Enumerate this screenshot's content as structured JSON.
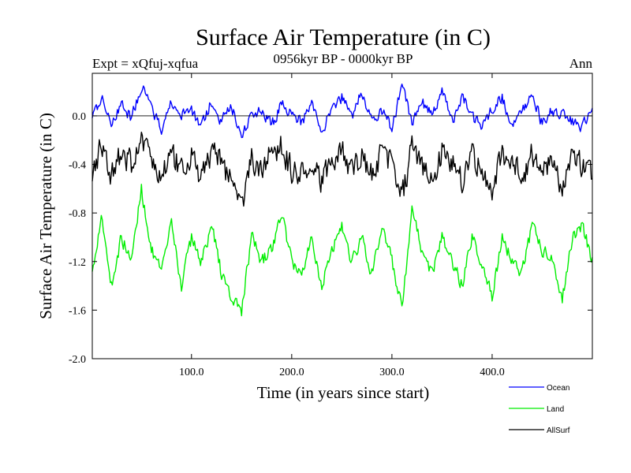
{
  "chart_data": {
    "type": "line",
    "title": "Surface Air Temperature (in C)",
    "subtitle_left": "Expt = xQfuj-xqfua",
    "subtitle_center": "0956kyr BP - 0000kyr BP",
    "subtitle_right": "Ann",
    "xlabel": "Time (in years since start)",
    "ylabel": "Surface Air Temperature (in C)",
    "xlim": [
      1,
      500
    ],
    "ylim": [
      -2.0,
      0.35
    ],
    "x_ticks": [
      100,
      200,
      300,
      400
    ],
    "x_tick_labels": [
      "100.0",
      "200.0",
      "300.0",
      "400.0"
    ],
    "y_ticks": [
      0.0,
      -0.4,
      -0.8,
      -1.2,
      -1.6,
      -2.0
    ],
    "y_tick_labels": [
      "0.0",
      "-0.4",
      "-0.8",
      "-1.2",
      "-1.6",
      "-2.0"
    ],
    "zero_line": 0.0,
    "x_sample": [
      1,
      10,
      20,
      30,
      40,
      50,
      60,
      70,
      80,
      90,
      100,
      110,
      120,
      130,
      140,
      150,
      160,
      170,
      180,
      190,
      200,
      210,
      220,
      230,
      240,
      250,
      260,
      270,
      280,
      290,
      300,
      310,
      320,
      330,
      340,
      350,
      360,
      370,
      380,
      390,
      400,
      410,
      420,
      430,
      440,
      450,
      460,
      470,
      480,
      490,
      500
    ],
    "series": [
      {
        "name": "Ocean",
        "color": "#0000ff",
        "mean": 0.0,
        "values": [
          0.0,
          0.15,
          -0.05,
          0.1,
          -0.02,
          0.25,
          0.05,
          -0.1,
          0.1,
          0.0,
          0.05,
          -0.1,
          0.12,
          -0.05,
          0.08,
          -0.15,
          0.0,
          0.05,
          -0.08,
          0.1,
          0.02,
          -0.05,
          0.1,
          -0.12,
          0.05,
          0.15,
          0.0,
          0.2,
          -0.05,
          0.05,
          -0.1,
          0.25,
          -0.05,
          0.12,
          0.0,
          0.2,
          -0.05,
          0.15,
          0.0,
          -0.1,
          0.05,
          0.15,
          -0.1,
          0.05,
          0.2,
          -0.08,
          0.05,
          0.0,
          -0.05,
          -0.1,
          0.05
        ]
      },
      {
        "name": "Land",
        "color": "#00ee00",
        "mean": -1.1,
        "values": [
          -1.3,
          -0.8,
          -1.4,
          -1.0,
          -1.2,
          -0.6,
          -1.1,
          -1.3,
          -0.9,
          -1.4,
          -1.0,
          -1.2,
          -0.9,
          -1.3,
          -1.5,
          -1.6,
          -1.0,
          -1.2,
          -1.1,
          -0.8,
          -1.2,
          -1.3,
          -1.0,
          -1.4,
          -1.1,
          -0.9,
          -1.2,
          -1.0,
          -1.3,
          -0.9,
          -1.2,
          -1.6,
          -0.8,
          -1.1,
          -1.3,
          -1.0,
          -1.2,
          -1.4,
          -1.0,
          -1.2,
          -1.5,
          -1.0,
          -1.2,
          -1.3,
          -0.9,
          -1.1,
          -1.2,
          -1.5,
          -1.0,
          -0.9,
          -1.2
        ]
      },
      {
        "name": "AllSurf",
        "color": "#000000",
        "mean": -0.4,
        "values": [
          -0.45,
          -0.25,
          -0.5,
          -0.3,
          -0.4,
          -0.2,
          -0.35,
          -0.5,
          -0.3,
          -0.45,
          -0.35,
          -0.5,
          -0.3,
          -0.4,
          -0.55,
          -0.75,
          -0.35,
          -0.45,
          -0.3,
          -0.25,
          -0.45,
          -0.5,
          -0.35,
          -0.55,
          -0.4,
          -0.3,
          -0.45,
          -0.35,
          -0.5,
          -0.3,
          -0.4,
          -0.7,
          -0.25,
          -0.4,
          -0.5,
          -0.3,
          -0.4,
          -0.55,
          -0.35,
          -0.45,
          -0.6,
          -0.3,
          -0.4,
          -0.5,
          -0.3,
          -0.45,
          -0.4,
          -0.6,
          -0.35,
          -0.4,
          -0.45
        ]
      }
    ]
  }
}
